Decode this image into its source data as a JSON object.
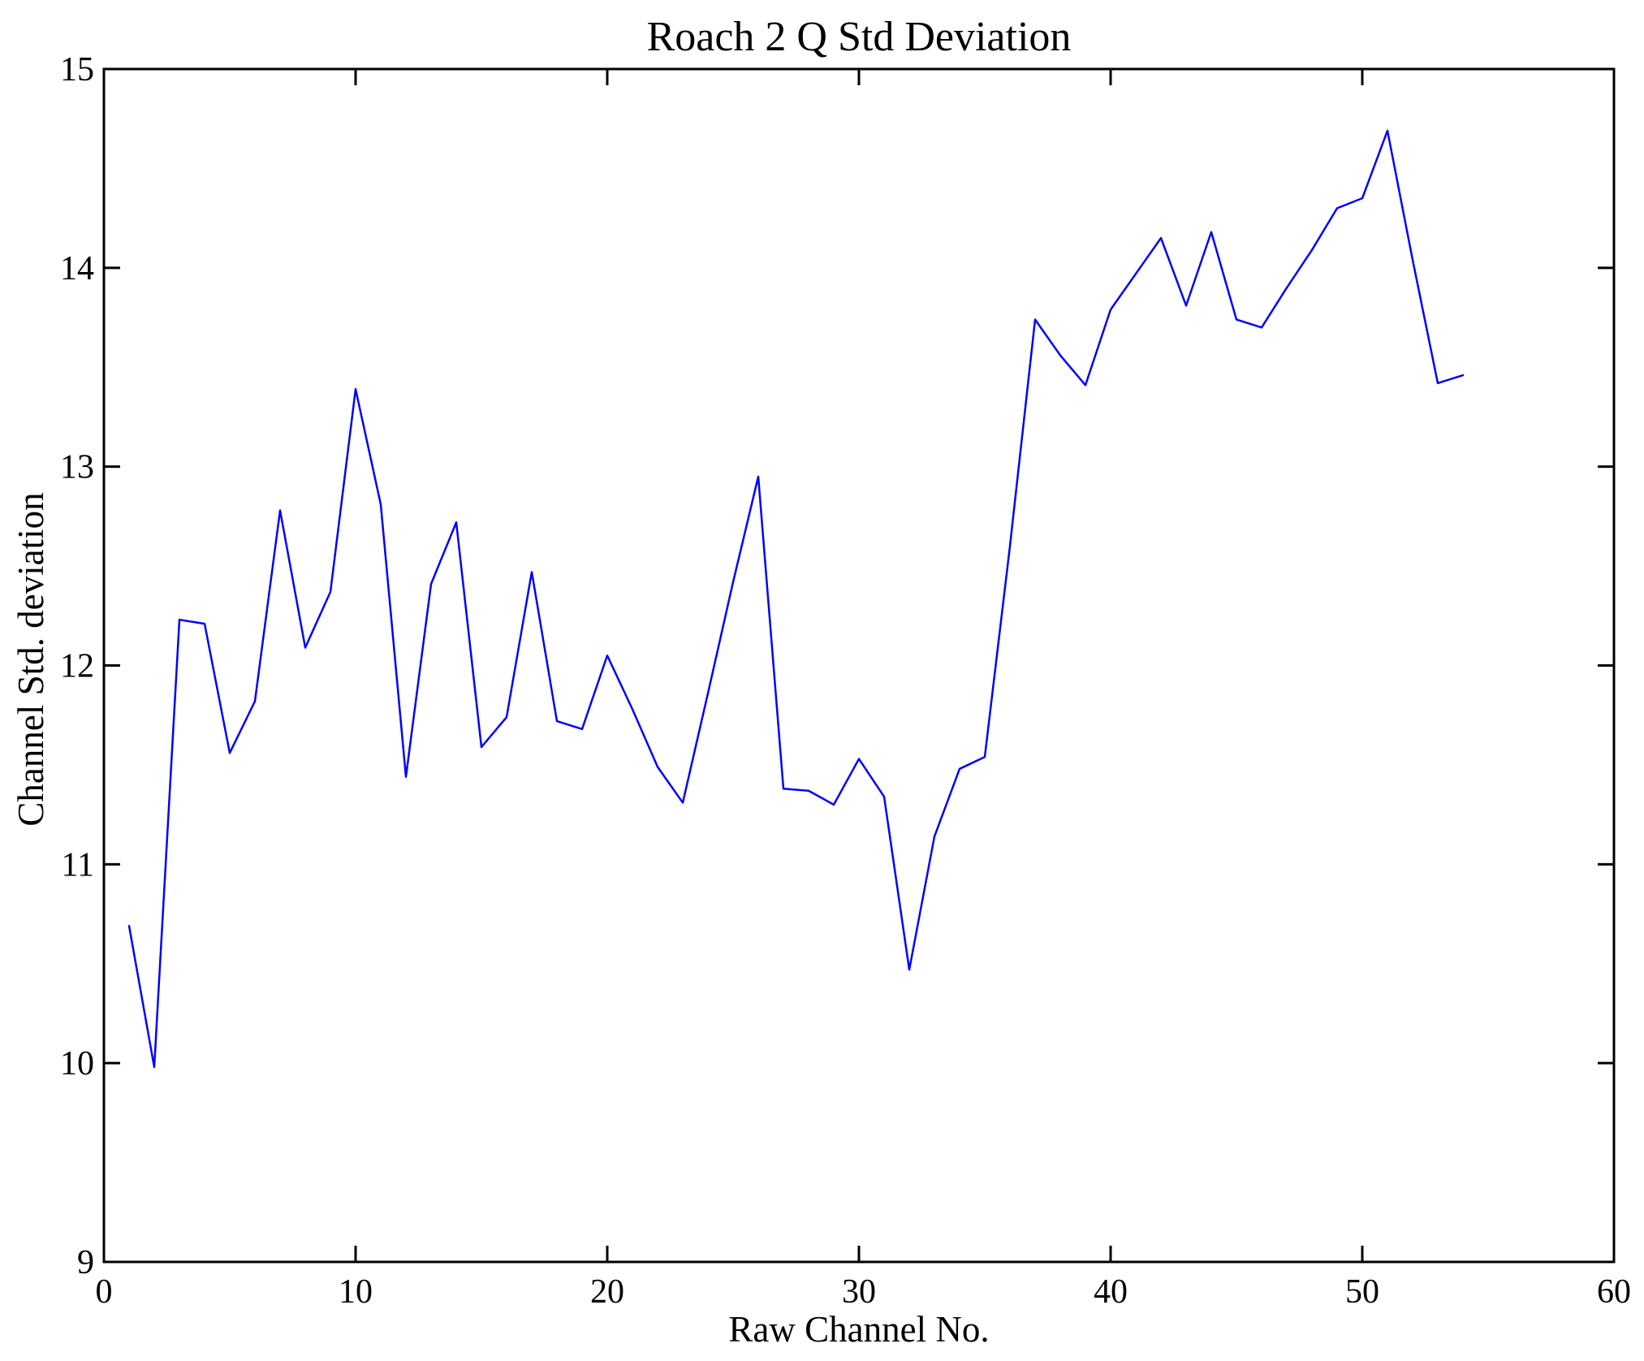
{
  "figure": {
    "background": "#ffffff",
    "axis_color": "#000000"
  },
  "chart_data": {
    "type": "line",
    "title": "Roach 2 Q Std Deviation",
    "xlabel": "Raw Channel No.",
    "ylabel": "Channel Std. deviation",
    "xlim": [
      0,
      60
    ],
    "ylim": [
      9,
      15
    ],
    "x_ticks": [
      0,
      10,
      20,
      30,
      40,
      50,
      60
    ],
    "y_ticks": [
      9,
      10,
      11,
      12,
      13,
      14,
      15
    ],
    "grid": false,
    "legend": false,
    "line_color": "#0000ff",
    "x": [
      1,
      2,
      3,
      4,
      5,
      6,
      7,
      8,
      9,
      10,
      11,
      12,
      13,
      14,
      15,
      16,
      17,
      18,
      19,
      20,
      21,
      22,
      23,
      24,
      25,
      26,
      27,
      28,
      29,
      30,
      31,
      32,
      33,
      34,
      35,
      36,
      37,
      38,
      39,
      40,
      41,
      42,
      43,
      44,
      45,
      46,
      47,
      48,
      49,
      50,
      51,
      52,
      53,
      54
    ],
    "y": [
      10.69,
      9.98,
      12.23,
      12.21,
      11.56,
      11.82,
      12.78,
      12.09,
      12.37,
      13.39,
      12.81,
      11.44,
      12.41,
      12.72,
      11.59,
      11.74,
      12.47,
      11.72,
      11.68,
      12.05,
      11.78,
      11.49,
      11.31,
      11.86,
      12.42,
      12.95,
      11.38,
      11.37,
      11.3,
      11.53,
      11.34,
      10.47,
      11.14,
      11.48,
      11.54,
      12.6,
      13.74,
      13.56,
      13.41,
      13.79,
      13.97,
      14.15,
      13.81,
      14.18,
      13.74,
      13.7,
      13.9,
      14.09,
      14.3,
      14.35,
      14.69,
      14.04,
      13.42,
      13.46
    ]
  }
}
